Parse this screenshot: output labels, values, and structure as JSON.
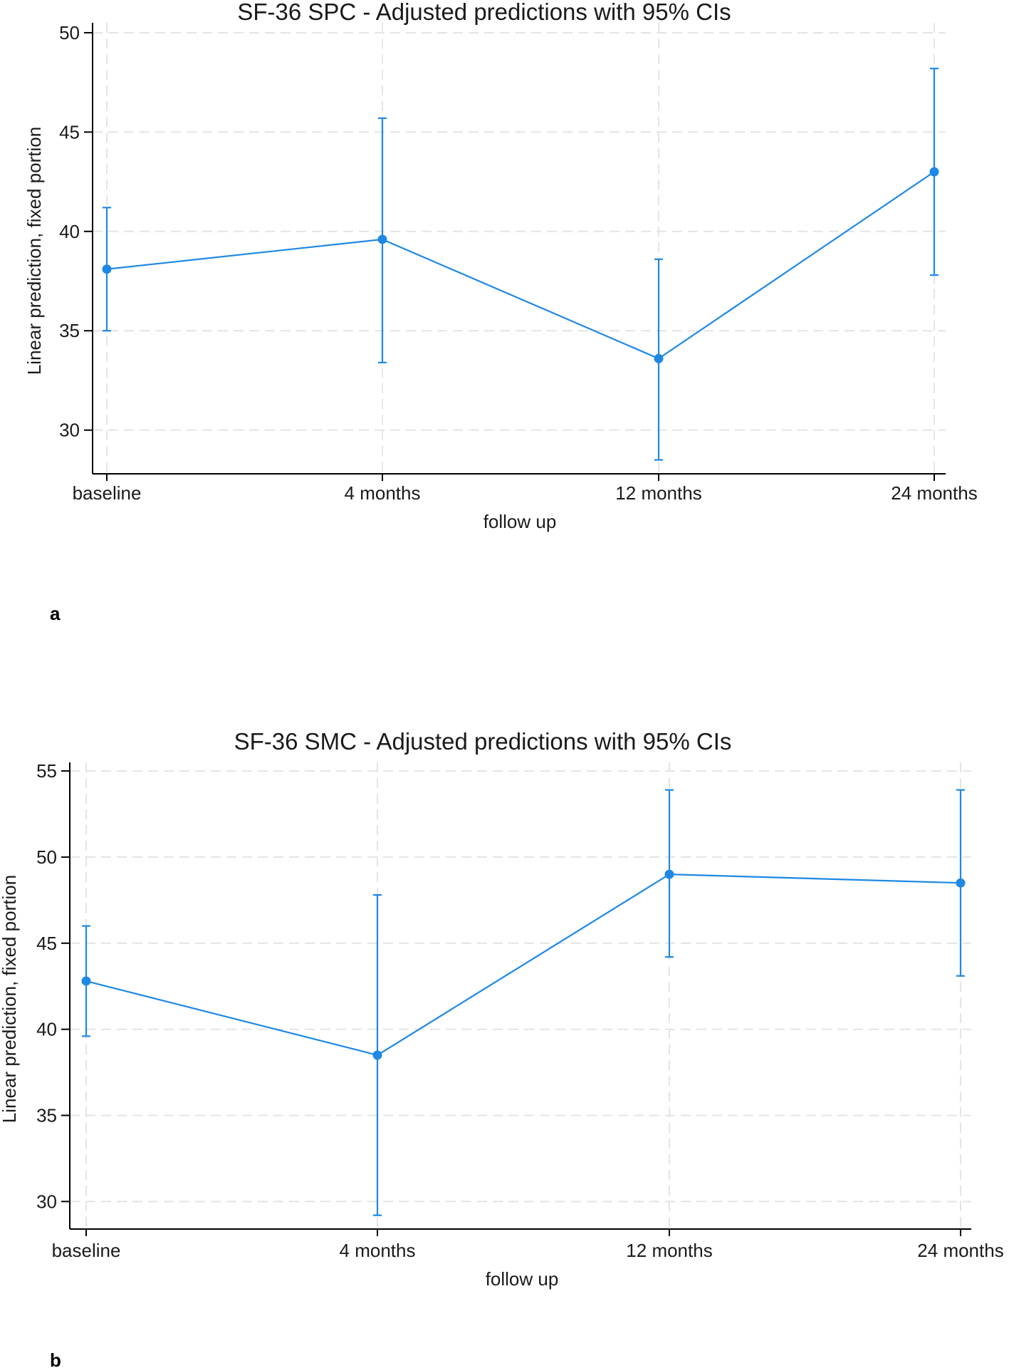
{
  "chart_data": [
    {
      "type": "line",
      "title": "SF-36 SPC - Adjusted predictions with 95% CIs",
      "xlabel": "follow up",
      "ylabel": "Linear prediction, fixed portion",
      "panel_label": "a",
      "categories": [
        "baseline",
        "4 months",
        "12 months",
        "24 months"
      ],
      "values": [
        38.1,
        39.6,
        33.6,
        43.0
      ],
      "ci_lower": [
        35.0,
        33.4,
        28.5,
        37.8
      ],
      "ci_upper": [
        41.2,
        45.7,
        38.6,
        48.2
      ],
      "yticks": [
        30,
        35,
        40,
        45,
        50
      ],
      "ylim": [
        27.8,
        50.5
      ],
      "grid": true,
      "color": "#1e88e5"
    },
    {
      "type": "line",
      "title": "SF-36 SMC - Adjusted predictions with 95% CIs",
      "xlabel": "follow up",
      "ylabel": "Linear prediction, fixed portion",
      "panel_label": "b",
      "categories": [
        "baseline",
        "4 months",
        "12 months",
        "24 months"
      ],
      "values": [
        42.8,
        38.5,
        49.0,
        48.5
      ],
      "ci_lower": [
        39.6,
        29.2,
        44.2,
        43.1
      ],
      "ci_upper": [
        46.0,
        47.8,
        53.9,
        53.9
      ],
      "yticks": [
        30,
        35,
        40,
        45,
        50,
        55
      ],
      "ylim": [
        28.4,
        55.5
      ],
      "grid": true,
      "color": "#1e88e5"
    }
  ]
}
